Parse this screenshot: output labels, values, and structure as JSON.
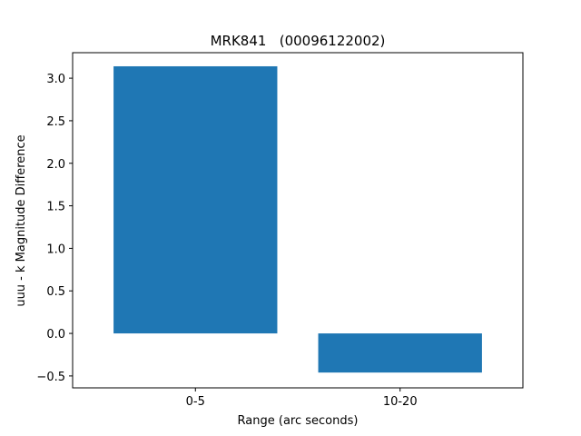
{
  "chart_data": {
    "type": "bar",
    "title": "MRK841   (00096122002)",
    "xlabel": "Range (arc seconds)",
    "ylabel": "uuu - k Magnitude Difference",
    "categories": [
      "0-5",
      "10-20"
    ],
    "values": [
      3.14,
      -0.46
    ],
    "ylim": [
      -0.64,
      3.3
    ],
    "yticks": [
      -0.5,
      0.0,
      0.5,
      1.0,
      1.5,
      2.0,
      2.5,
      3.0
    ],
    "ytick_labels": [
      "−0.5",
      "0.0",
      "0.5",
      "1.0",
      "1.5",
      "2.0",
      "2.5",
      "3.0"
    ],
    "bar_color": "#1f77b4",
    "grid": false,
    "legend": "none"
  }
}
